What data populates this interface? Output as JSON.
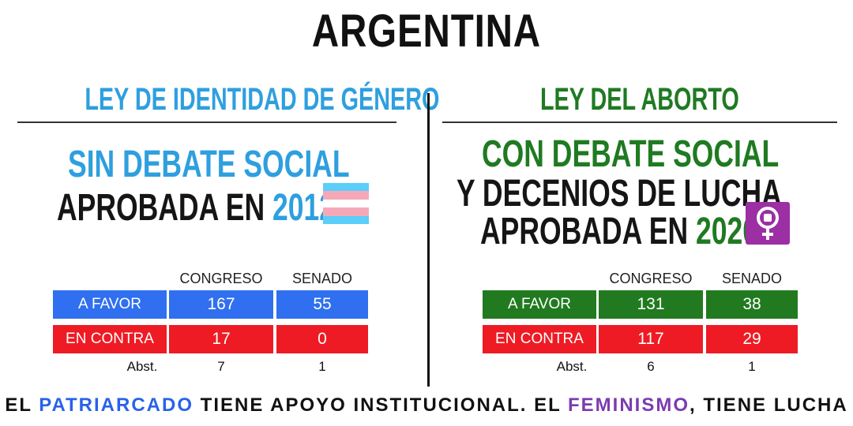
{
  "title": "ARGENTINA",
  "left": {
    "header": "LEY DE IDENTIDAD DE GÉNERO",
    "line1": "SIN DEBATE SOCIAL",
    "line2_prefix": "APROBADA EN",
    "year": "2012",
    "icon": "transgender-flag-icon",
    "table": {
      "col_congreso": "CONGRESO",
      "col_senado": "SENADO",
      "favor_label": "A FAVOR",
      "favor_congreso": "167",
      "favor_senado": "55",
      "contra_label": "EN CONTRA",
      "contra_congreso": "17",
      "contra_senado": "0",
      "abst_label": "Abst.",
      "abst_congreso": "7",
      "abst_senado": "1"
    }
  },
  "right": {
    "header": "LEY DEL ABORTO",
    "line1": "CON DEBATE SOCIAL",
    "line2": "Y DECENIOS DE LUCHA",
    "line3_prefix": "APROBADA EN",
    "year": "2020",
    "icon": "feminist-fist-icon",
    "table": {
      "col_congreso": "CONGRESO",
      "col_senado": "SENADO",
      "favor_label": "A FAVOR",
      "favor_congreso": "131",
      "favor_senado": "38",
      "contra_label": "EN CONTRA",
      "contra_congreso": "117",
      "contra_senado": "29",
      "abst_label": "Abst.",
      "abst_congreso": "6",
      "abst_senado": "1"
    }
  },
  "footer": {
    "part1": "EL ",
    "patriarcado": "PATRIARCADO",
    "part2": " TIENE APOYO INSTITUCIONAL. EL ",
    "feminismo": "FEMINISMO",
    "part3": ", TIENE LUCHA"
  },
  "colors": {
    "blue_text": "#2e9fdf",
    "green_text": "#1f7a22",
    "blue_cell": "#2f6ff0",
    "red_cell": "#ee1b24",
    "green_cell": "#217a1f",
    "purple": "#9b2fa3"
  }
}
